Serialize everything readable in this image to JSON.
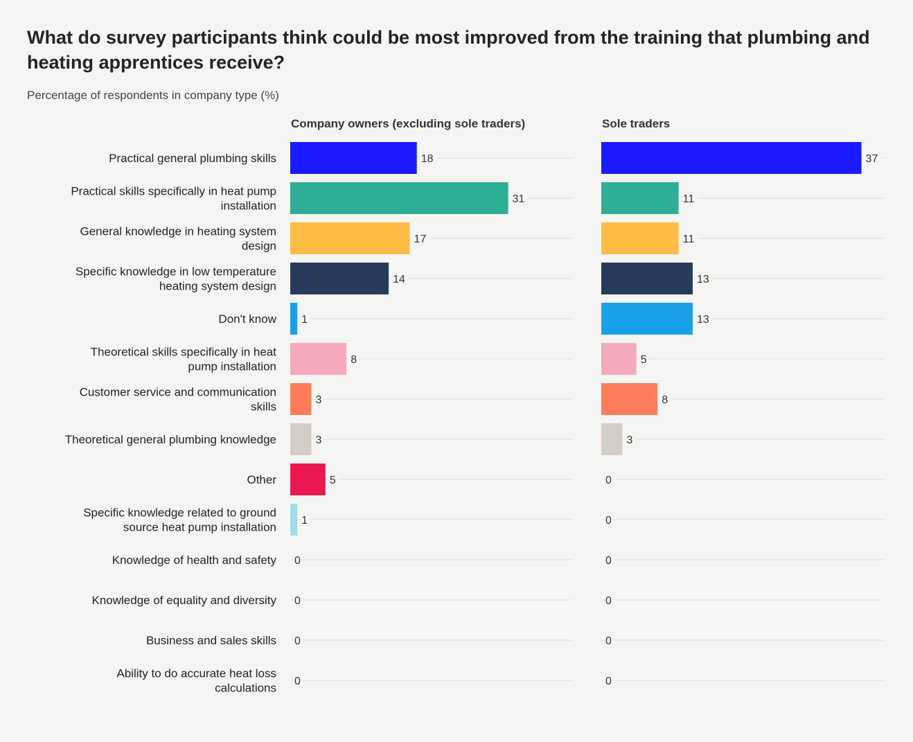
{
  "title": "What do survey participants think could be most improved from the training that plumbing and heating apprentices receive?",
  "subtitle": "Percentage of respondents in company type (%)",
  "chart_data": {
    "type": "bar",
    "orientation": "horizontal",
    "title": "What do survey participants think could be most improved from the training that plumbing and heating apprentices receive?",
    "subtitle": "Percentage of respondents in company type (%)",
    "categories": [
      "Practical general plumbing skills",
      "Practical skills specifically in heat pump installation",
      "General knowledge in heating system design",
      "Specific knowledge in low temperature heating system design",
      "Don't know",
      "Theoretical skills specifically in heat pump installation",
      "Customer service and communication skills",
      "Theoretical general plumbing knowledge",
      "Other",
      "Specific knowledge related to ground source heat pump installation",
      "Knowledge of health and safety",
      "Knowledge of equality and diversity",
      "Business and sales skills",
      "Ability to do accurate heat loss calculations"
    ],
    "category_lines": [
      [
        "Practical general plumbing skills"
      ],
      [
        "Practical skills specifically in heat pump",
        "installation"
      ],
      [
        "General knowledge in heating system",
        "design"
      ],
      [
        "Specific knowledge in low temperature",
        "heating system design"
      ],
      [
        "Don't know"
      ],
      [
        "Theoretical skills specifically in heat",
        "pump installation"
      ],
      [
        "Customer service and communication",
        "skills"
      ],
      [
        "Theoretical general plumbing knowledge"
      ],
      [
        "Other"
      ],
      [
        "Specific knowledge related to ground",
        "source heat pump installation"
      ],
      [
        "Knowledge of health and safety"
      ],
      [
        "Knowledge of equality and diversity"
      ],
      [
        "Business and sales skills"
      ],
      [
        "Ability to do accurate heat loss",
        "calculations"
      ]
    ],
    "colors": [
      "#1a1aff",
      "#2eae96",
      "#ffbb44",
      "#283a5c",
      "#1aa0e6",
      "#f5aabc",
      "#ff7c5a",
      "#d6ccc6",
      "#ea1850",
      "#a0dce8",
      "#cccccc",
      "#cccccc",
      "#cccccc",
      "#cccccc"
    ],
    "series": [
      {
        "name": "Company owners (excluding sole traders)",
        "values": [
          18,
          31,
          17,
          14,
          1,
          8,
          3,
          3,
          5,
          1,
          0,
          0,
          0,
          0
        ]
      },
      {
        "name": "Sole traders",
        "values": [
          37,
          11,
          11,
          13,
          13,
          5,
          8,
          3,
          0,
          0,
          0,
          0,
          0,
          0
        ]
      }
    ],
    "xlim": [
      0,
      40
    ],
    "grid": true,
    "legend": "panel-headers"
  }
}
